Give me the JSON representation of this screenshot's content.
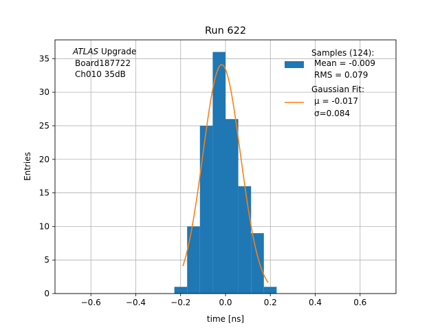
{
  "chart_data": {
    "type": "bar",
    "title": "Run 622",
    "xlabel": "time [ns]",
    "ylabel": "Entries",
    "xlim": [
      -0.76,
      0.76
    ],
    "ylim": [
      0,
      37.8
    ],
    "xticks": [
      -0.6,
      -0.4,
      -0.2,
      0.0,
      0.2,
      0.4,
      0.6
    ],
    "xtick_labels": [
      "−0.6",
      "−0.4",
      "−0.2",
      "0.0",
      "0.2",
      "0.4",
      "0.6"
    ],
    "yticks": [
      0,
      5,
      10,
      15,
      20,
      25,
      30,
      35
    ],
    "ytick_labels": [
      "0",
      "5",
      "10",
      "15",
      "20",
      "25",
      "30",
      "35"
    ],
    "grid": true,
    "legend_position": "top-right",
    "annotation": {
      "italic": "ATLAS",
      "rest": "Upgrade",
      "line2": "Board187722",
      "line3": "Ch010 35dB"
    },
    "histogram": {
      "name": "Samples (124):",
      "color": "#1f77b4",
      "bin_edges": [
        -0.228,
        -0.171,
        -0.114,
        -0.057,
        0.0,
        0.057,
        0.114,
        0.171,
        0.228
      ],
      "bin_edges_fine": [
        -0.228,
        -0.171,
        -0.114,
        -0.057,
        -0.0285,
        0.0,
        0.057,
        0.114,
        0.171,
        0.228
      ],
      "bins": [
        {
          "x0": -0.228,
          "x1": -0.171,
          "count": 1
        },
        {
          "x0": -0.171,
          "x1": -0.114,
          "count": 10
        },
        {
          "x0": -0.114,
          "x1": -0.057,
          "count": 25
        },
        {
          "x0": -0.057,
          "x1": 0.0,
          "count": 36
        },
        {
          "x0": 0.0,
          "x1": 0.057,
          "count": 26
        },
        {
          "x0": 0.057,
          "x1": 0.114,
          "count": 16
        },
        {
          "x0": 0.114,
          "x1": 0.171,
          "count": 9
        },
        {
          "x0": 0.171,
          "x1": 0.228,
          "count": 1
        }
      ],
      "mean_label": "Mean = -0.009",
      "rms_label": "RMS = 0.079"
    },
    "fit": {
      "name": "Gaussian Fit:",
      "color": "#ff7f0e",
      "amplitude": 34.1,
      "mu": -0.017,
      "sigma": 0.084,
      "x_range": [
        -0.19,
        0.19
      ],
      "mu_label": "μ = -0.017",
      "sigma_label": "σ=0.084"
    }
  }
}
